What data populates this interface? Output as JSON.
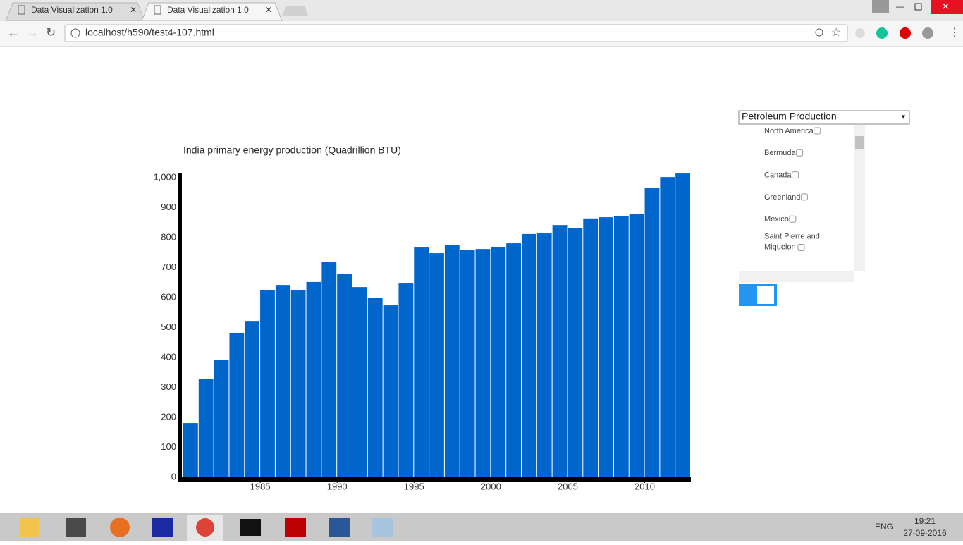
{
  "browser": {
    "tabs": [
      "Data Visualization 1.0",
      "Data Visualization 1.0"
    ],
    "url": "localhost/h590/test4-107.html"
  },
  "chart_data": {
    "type": "bar",
    "title": "India primary energy production (Quadrillion BTU)",
    "color": "#0066cc",
    "x": [
      1980,
      1981,
      1982,
      1983,
      1984,
      1985,
      1986,
      1987,
      1988,
      1989,
      1990,
      1991,
      1992,
      1993,
      1994,
      1995,
      1996,
      1997,
      1998,
      1999,
      2000,
      2001,
      2002,
      2003,
      2004,
      2005,
      2006,
      2007,
      2008,
      2009,
      2010,
      2011,
      2012
    ],
    "values": [
      181,
      327,
      391,
      482,
      522,
      624,
      642,
      624,
      652,
      720,
      678,
      635,
      598,
      574,
      647,
      767,
      748,
      776,
      760,
      762,
      769,
      781,
      812,
      814,
      842,
      831,
      864,
      868,
      873,
      880,
      967,
      1002,
      1014
    ],
    "xlim": [
      1980,
      2013
    ],
    "xticks": [
      1985,
      1990,
      1995,
      2000,
      2005,
      2010
    ],
    "ylim": [
      0,
      1000
    ],
    "yticks": [
      0,
      100,
      200,
      300,
      400,
      500,
      600,
      700,
      800,
      900,
      {
        "value": 1000,
        "label": "1,000"
      }
    ]
  },
  "sidebar": {
    "dropdown": "Petroleum Production",
    "regions": [
      "North America",
      "Bermuda",
      "Canada",
      "Greenland",
      "Mexico",
      "Saint Pierre and Miquelon"
    ]
  },
  "taskbar": {
    "language": "ENG",
    "time": "19:21",
    "date": "27-09-2016"
  }
}
